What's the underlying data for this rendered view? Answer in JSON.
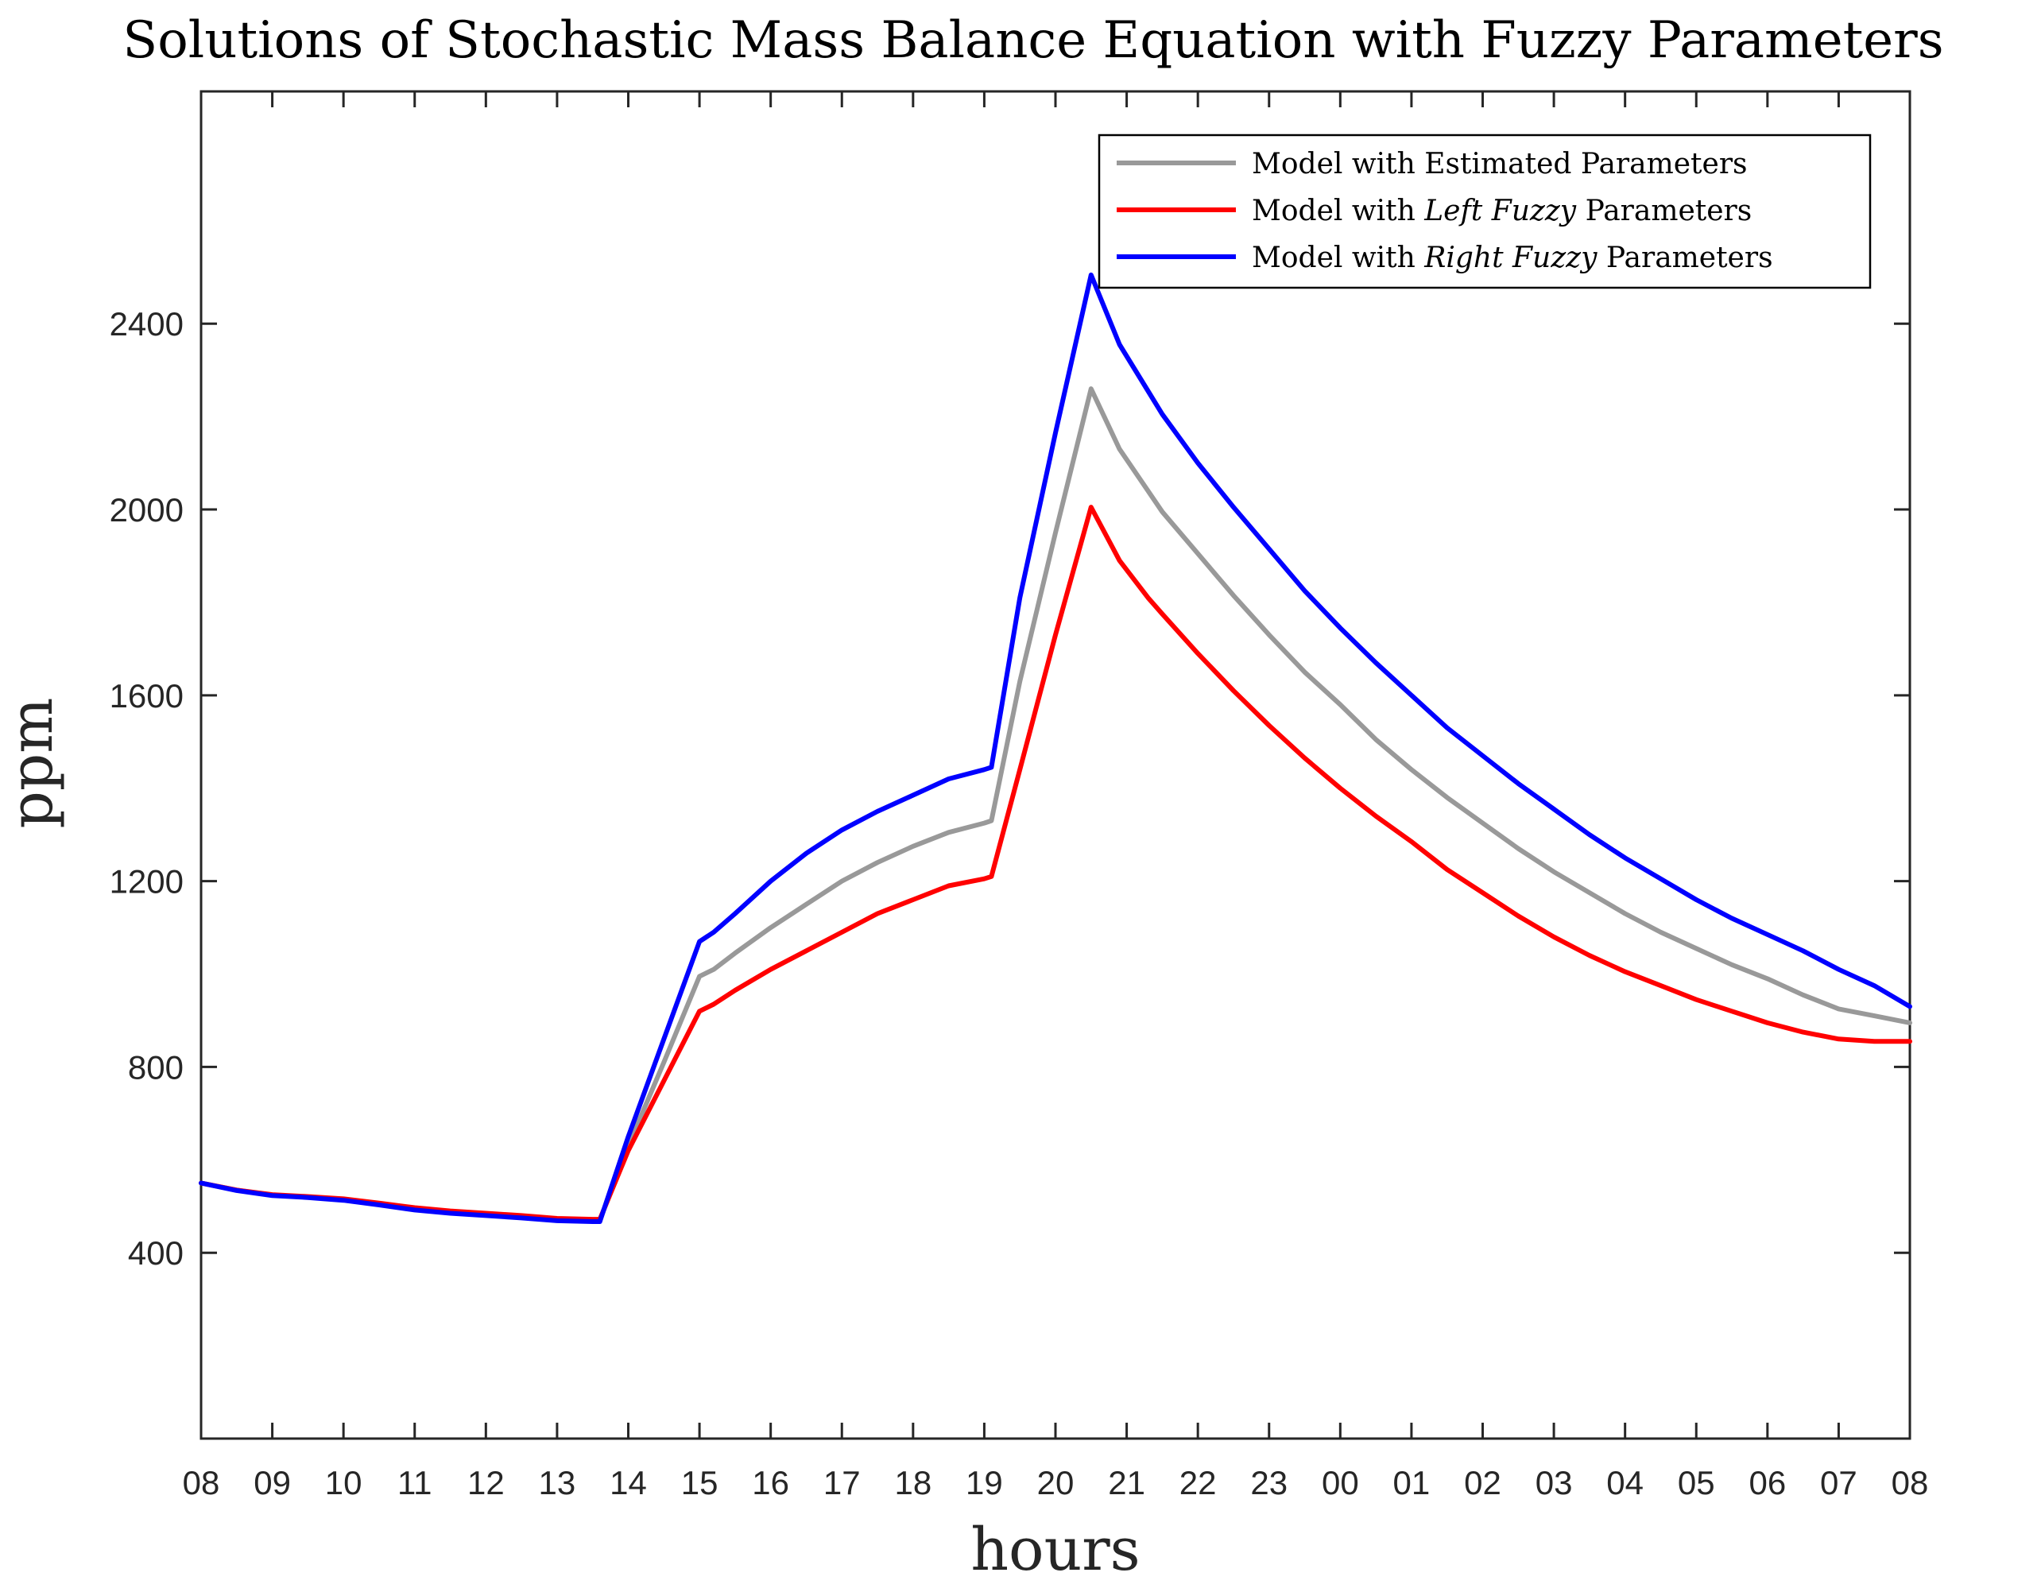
{
  "chart_data": {
    "type": "line",
    "title": "Solutions of Stochastic Mass Balance Equation with Fuzzy Parameters",
    "xlabel": "hours",
    "ylabel": "ppm",
    "xlim": [
      0,
      24
    ],
    "ylim": [
      0,
      2900
    ],
    "x_tick_values": [
      0,
      1,
      2,
      3,
      4,
      5,
      6,
      7,
      8,
      9,
      10,
      11,
      12,
      13,
      14,
      15,
      16,
      17,
      18,
      19,
      20,
      21,
      22,
      23,
      24
    ],
    "x_tick_labels": [
      "08",
      "09",
      "10",
      "11",
      "12",
      "13",
      "14",
      "15",
      "16",
      "17",
      "18",
      "19",
      "20",
      "21",
      "22",
      "23",
      "00",
      "01",
      "02",
      "03",
      "04",
      "05",
      "06",
      "07",
      "08"
    ],
    "y_ticks": [
      400,
      800,
      1200,
      1600,
      2000,
      2400
    ],
    "legend_position": "top-right",
    "grid": false,
    "series": [
      {
        "name": "Model with Estimated Parameters",
        "name_parts": [
          "Model with Estimated Parameters",
          "",
          ""
        ],
        "color": "#999999",
        "x": [
          0,
          0.5,
          1,
          1.5,
          2,
          2.5,
          3,
          3.5,
          4,
          4.5,
          5,
          5.5,
          5.6,
          6,
          6.5,
          7,
          7.2,
          7.5,
          8,
          8.5,
          9,
          9.5,
          10,
          10.5,
          11,
          11.1,
          11.5,
          12,
          12.5,
          12.9,
          13.3,
          13.5,
          14,
          14.5,
          15,
          15.5,
          16,
          16.5,
          17,
          17.5,
          18,
          18.5,
          19,
          19.5,
          20,
          20.5,
          21,
          21.5,
          22,
          22.5,
          23,
          23.5,
          24
        ],
        "y": [
          550,
          535,
          524,
          520,
          515,
          505,
          495,
          488,
          483,
          478,
          472,
          470,
          470,
          630,
          810,
          995,
          1010,
          1045,
          1100,
          1150,
          1200,
          1240,
          1275,
          1305,
          1325,
          1330,
          1630,
          1950,
          2260,
          2130,
          2040,
          1995,
          1905,
          1815,
          1730,
          1650,
          1580,
          1505,
          1440,
          1380,
          1325,
          1270,
          1220,
          1175,
          1130,
          1090,
          1055,
          1020,
          990,
          955,
          925,
          910,
          895
        ]
      },
      {
        "name": "Model with Left Fuzzy Parameters",
        "name_parts": [
          "Model with ",
          "Left Fuzzy",
          " Parameters"
        ],
        "color": "#ff0000",
        "x": [
          0,
          0.5,
          1,
          1.5,
          2,
          2.5,
          3,
          3.5,
          4,
          4.5,
          5,
          5.5,
          5.6,
          6,
          6.5,
          7,
          7.2,
          7.5,
          8,
          8.5,
          9,
          9.5,
          10,
          10.5,
          11,
          11.1,
          11.5,
          12,
          12.5,
          12.9,
          13.3,
          13.5,
          14,
          14.5,
          15,
          15.5,
          16,
          16.5,
          17,
          17.5,
          18,
          18.5,
          19,
          19.5,
          20,
          20.5,
          21,
          21.5,
          22,
          22.5,
          23,
          23.5,
          24
        ],
        "y": [
          550,
          535,
          525,
          521,
          516,
          507,
          497,
          490,
          485,
          480,
          474,
          472,
          472,
          620,
          770,
          920,
          935,
          965,
          1010,
          1050,
          1090,
          1130,
          1160,
          1190,
          1205,
          1210,
          1440,
          1730,
          2005,
          1890,
          1810,
          1775,
          1690,
          1610,
          1535,
          1465,
          1400,
          1340,
          1285,
          1225,
          1175,
          1125,
          1080,
          1040,
          1005,
          975,
          945,
          920,
          895,
          875,
          860,
          855,
          855
        ]
      },
      {
        "name": "Model with Right Fuzzy Parameters",
        "name_parts": [
          "Model with ",
          "Right Fuzzy",
          " Parameters"
        ],
        "color": "#0000ff",
        "x": [
          0,
          0.5,
          1,
          1.5,
          2,
          2.5,
          3,
          3.5,
          4,
          4.5,
          5,
          5.5,
          5.6,
          6,
          6.5,
          7,
          7.2,
          7.5,
          8,
          8.5,
          9,
          9.5,
          10,
          10.5,
          11,
          11.1,
          11.5,
          12,
          12.5,
          12.9,
          13.3,
          13.5,
          14,
          14.5,
          15,
          15.5,
          16,
          16.5,
          17,
          17.5,
          18,
          18.5,
          19,
          19.5,
          20,
          20.5,
          21,
          21.5,
          22,
          22.5,
          23,
          23.5,
          24
        ],
        "y": [
          550,
          534,
          523,
          519,
          513,
          503,
          492,
          485,
          480,
          475,
          469,
          467,
          467,
          650,
          860,
          1070,
          1090,
          1130,
          1200,
          1260,
          1310,
          1350,
          1385,
          1420,
          1440,
          1445,
          1810,
          2165,
          2505,
          2355,
          2255,
          2205,
          2100,
          2005,
          1915,
          1825,
          1745,
          1670,
          1600,
          1530,
          1470,
          1410,
          1355,
          1300,
          1250,
          1205,
          1160,
          1120,
          1085,
          1050,
          1010,
          975,
          930
        ]
      }
    ]
  }
}
